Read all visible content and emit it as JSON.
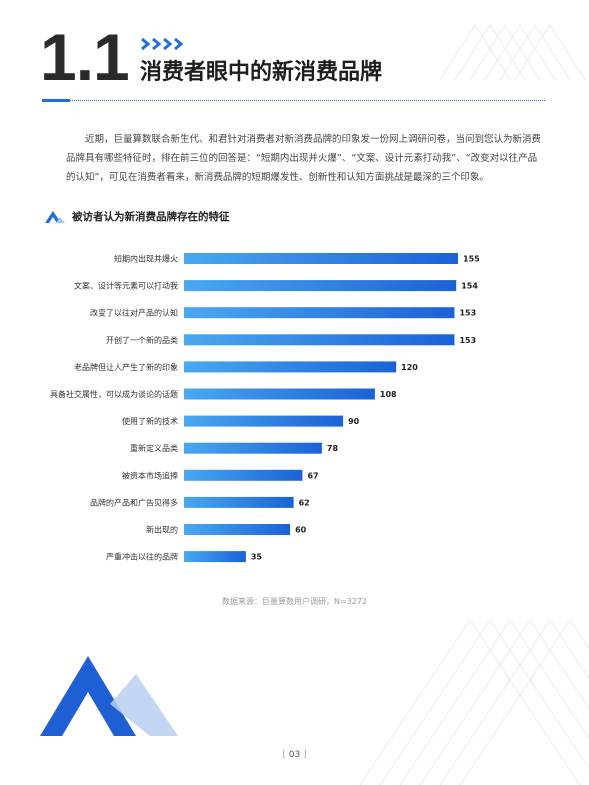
{
  "section": {
    "number": "1.1",
    "title": "消费者眼中的新消费品牌"
  },
  "intro": "近期，巨量算数联合新生代、和君针对消费者对新消费品牌的印象发一份网上调研问卷，当问到您认为新消费品牌具有哪些特征时，排在前三位的回答是：“短期内出现并火爆”、“文案、设计元素打动我”、“改变对以往产品的认知”，可见在消费者看来，新消费品牌的短期爆发性、创新性和认知方面挑战是最深的三个印象。",
  "chart_heading": "被访者认为新消费品牌存在的特征",
  "source": "数据来源：巨量算数用户调研，N=3272",
  "page": {
    "number": "03"
  },
  "colors": {
    "accent": "#1f6fd6",
    "bar_start": "#4aa8f0",
    "bar_end": "#1a62d6",
    "text_dark": "#222222"
  },
  "chart_data": {
    "type": "bar",
    "orientation": "horizontal",
    "title": "被访者认为新消费品牌存在的特征",
    "categories": [
      "短期内出现并爆火",
      "文案、设计等元素可以打动我",
      "改变了以往对产品的认知",
      "开创了一个新的品类",
      "老品牌但让人产生了新的印象",
      "具备社交属性，可以成为谈论的话题",
      "使用了新的技术",
      "重新定义品类",
      "被资本市场追捧",
      "品牌的产品和广告见得多",
      "新出现的",
      "严重冲击以往的品牌"
    ],
    "values": [
      155,
      154,
      153,
      153,
      120,
      108,
      90,
      78,
      67,
      62,
      60,
      35
    ],
    "xlim": [
      0,
      155
    ],
    "grid": false,
    "data_labels": true
  }
}
